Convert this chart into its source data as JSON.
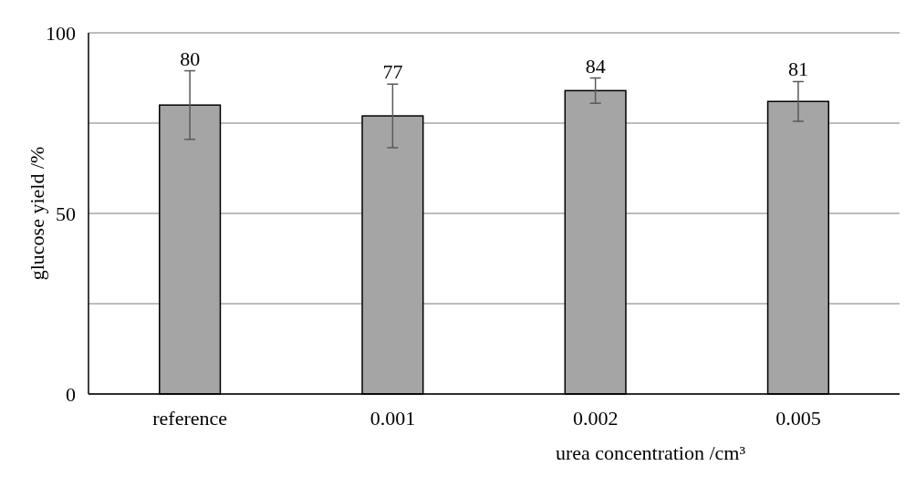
{
  "chart_data": {
    "type": "bar",
    "xlabel": "urea concentration /cm³",
    "ylabel": "glucose yield /%",
    "categories": [
      "reference",
      "0.001",
      "0.002",
      "0.005"
    ],
    "values": [
      80,
      77,
      84,
      81
    ],
    "errors": [
      9.5,
      8.8,
      3.5,
      5.5
    ],
    "color": "#a5a5a5",
    "data_labels": true,
    "ylim": [
      0,
      100
    ],
    "yticks": [
      0,
      {
        "value": 25,
        "label": null
      },
      50,
      {
        "value": 75,
        "label": null
      },
      100
    ],
    "grid": "y"
  }
}
